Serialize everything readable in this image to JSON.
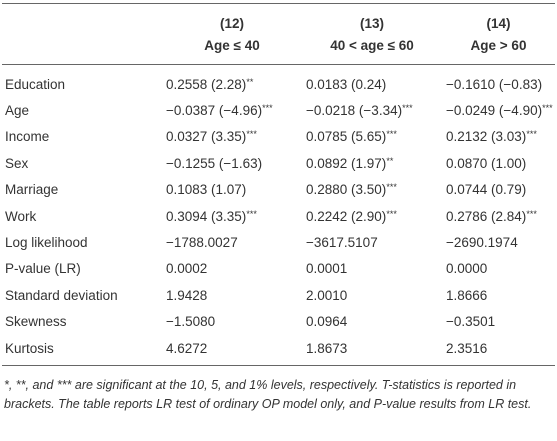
{
  "table": {
    "header": [
      {
        "number": "(12)",
        "label": "Age ≤ 40"
      },
      {
        "number": "(13)",
        "label": "40 < age ≤ 60"
      },
      {
        "number": "(14)",
        "label": "Age > 60"
      }
    ],
    "rows": [
      {
        "label": "Education",
        "cells": [
          {
            "text": "0.2558 (2.28)",
            "sig": "**"
          },
          {
            "text": "0.0183 (0.24)"
          },
          {
            "text": "−0.1610 (−0.83)"
          }
        ]
      },
      {
        "label": "Age",
        "cells": [
          {
            "text": "−0.0387 (−4.96)",
            "sig": "***"
          },
          {
            "text": "−0.0218 (−3.34)",
            "sig": "***"
          },
          {
            "text": "−0.0249 (−4.90)",
            "sig": "***"
          }
        ]
      },
      {
        "label": "Income",
        "cells": [
          {
            "text": "0.0327 (3.35)",
            "sig": "***"
          },
          {
            "text": "0.0785 (5.65)",
            "sig": "***"
          },
          {
            "text": "0.2132 (3.03)",
            "sig": "***"
          }
        ]
      },
      {
        "label": "Sex",
        "cells": [
          {
            "text": "−0.1255 (−1.63)"
          },
          {
            "text": "0.0892 (1.97)",
            "sig": "**"
          },
          {
            "text": "0.0870 (1.00)"
          }
        ]
      },
      {
        "label": "Marriage",
        "cells": [
          {
            "text": "0.1083 (1.07)"
          },
          {
            "text": "0.2880 (3.50)",
            "sig": "***"
          },
          {
            "text": "0.0744 (0.79)"
          }
        ]
      },
      {
        "label": "Work",
        "cells": [
          {
            "text": "0.3094 (3.35)",
            "sig": "***"
          },
          {
            "text": "0.2242 (2.90)",
            "sig": "***"
          },
          {
            "text": "0.2786 (2.84)",
            "sig": "***"
          }
        ]
      },
      {
        "label": "Log likelihood",
        "cells": [
          {
            "text": "−1788.0027"
          },
          {
            "text": "−3617.5107"
          },
          {
            "text": "−2690.1974"
          }
        ]
      },
      {
        "label": "P-value (LR)",
        "cells": [
          {
            "text": "0.0002"
          },
          {
            "text": "0.0001"
          },
          {
            "text": "0.0000"
          }
        ]
      },
      {
        "label": "Standard deviation",
        "cells": [
          {
            "text": "1.9428"
          },
          {
            "text": "2.0010"
          },
          {
            "text": "1.8666"
          }
        ]
      },
      {
        "label": "Skewness",
        "cells": [
          {
            "text": "−1.5080"
          },
          {
            "text": "0.0964"
          },
          {
            "text": "−0.3501"
          }
        ]
      },
      {
        "label": "Kurtosis",
        "cells": [
          {
            "text": "4.6272"
          },
          {
            "text": "1.8673"
          },
          {
            "text": "2.3516"
          }
        ]
      }
    ],
    "footnote": "*, **, and *** are significant at the 10, 5, and 1% levels, respectively. T-statistics is reported in brackets. The table reports LR test of ordinary OP model only, and P-value results from LR test."
  }
}
